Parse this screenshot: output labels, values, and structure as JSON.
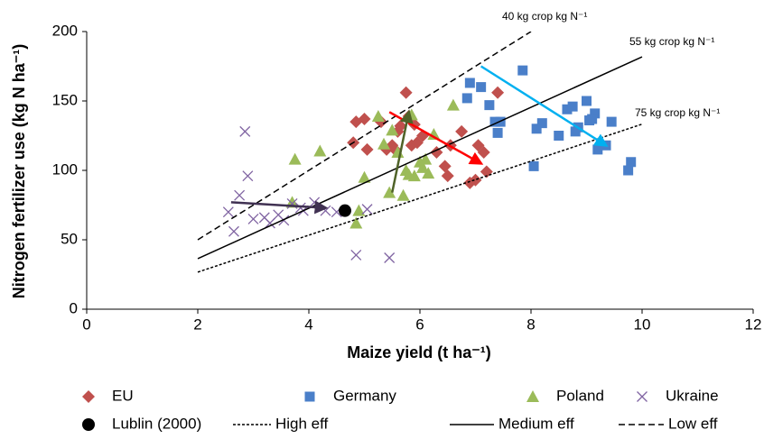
{
  "chart_data": {
    "type": "scatter",
    "x_label": "Maize yield (t ha⁻¹)",
    "y_label": "Nitrogen fertilizer use (kg N ha⁻¹)",
    "xlim": [
      0,
      12
    ],
    "xticks": [
      0,
      2,
      4,
      6,
      8,
      10,
      12
    ],
    "ylim": [
      0,
      200
    ],
    "yticks": [
      0,
      50,
      100,
      150,
      200
    ],
    "grid": false,
    "legend": "bottom",
    "series": [
      {
        "name": "EU",
        "color": "#c0504d",
        "marker": "diamond",
        "x": [
          4.8,
          4.85,
          5.0,
          5.05,
          5.3,
          5.4,
          5.5,
          5.55,
          5.6,
          5.75,
          5.85,
          5.9,
          5.95,
          6.05,
          6.3,
          6.45,
          6.5,
          6.55,
          6.75,
          6.9,
          7.0,
          7.05,
          7.15,
          7.2,
          7.4,
          5.8,
          5.65
        ],
        "values": [
          120,
          135,
          137,
          115,
          135,
          115,
          118,
          115,
          128,
          156,
          118,
          133,
          120,
          125,
          113,
          103,
          96,
          118,
          128,
          91,
          93,
          118,
          113,
          99,
          156,
          139,
          132
        ]
      },
      {
        "name": "Germany",
        "color": "#4a7fc9",
        "marker": "square",
        "x": [
          6.85,
          6.9,
          7.1,
          7.25,
          7.35,
          7.4,
          7.85,
          8.05,
          8.1,
          8.2,
          8.5,
          8.65,
          8.75,
          8.8,
          8.85,
          9.0,
          9.05,
          9.15,
          9.2,
          9.35,
          9.45,
          9.75,
          9.8,
          7.45,
          9.1
        ],
        "values": [
          152,
          163,
          160,
          147,
          135,
          127,
          172,
          103,
          130,
          134,
          125,
          144,
          146,
          128,
          131,
          150,
          136,
          141,
          115,
          118,
          135,
          100,
          106,
          135,
          137
        ]
      },
      {
        "name": "Poland",
        "color": "#9bbb59",
        "marker": "triangle",
        "x": [
          3.75,
          4.2,
          3.7,
          4.85,
          4.9,
          5.0,
          5.25,
          5.35,
          5.45,
          5.5,
          5.6,
          5.7,
          5.75,
          5.8,
          5.85,
          6.0,
          6.05,
          6.1,
          6.15,
          6.25,
          6.6,
          5.9
        ],
        "values": [
          108,
          114,
          77,
          62,
          71,
          95,
          139,
          119,
          84,
          129,
          113,
          82,
          100,
          97,
          140,
          106,
          102,
          108,
          98,
          126,
          147,
          96
        ]
      },
      {
        "name": "Ukraine",
        "color": "#8064a2",
        "marker": "x",
        "x": [
          2.55,
          2.65,
          2.75,
          2.85,
          2.9,
          3.0,
          3.2,
          3.3,
          3.45,
          3.55,
          3.85,
          3.9,
          4.1,
          4.3,
          4.5,
          4.85,
          5.05,
          5.45,
          3.7
        ],
        "values": [
          70,
          56,
          82,
          128,
          96,
          65,
          66,
          62,
          68,
          64,
          73,
          71,
          77,
          71,
          70,
          39,
          72,
          37,
          76
        ]
      },
      {
        "name": "Lublin (2000)",
        "color": "#000000",
        "marker": "circle",
        "x": [
          4.65
        ],
        "values": [
          71
        ]
      },
      {
        "name": "High eff",
        "color": "#000000",
        "style": "dotted",
        "x": [
          2,
          10
        ],
        "values": [
          26.7,
          133.3
        ]
      },
      {
        "name": "Medium eff",
        "color": "#000000",
        "style": "solid",
        "x": [
          2,
          10
        ],
        "values": [
          36.4,
          181.8
        ]
      },
      {
        "name": "Low eff",
        "color": "#000000",
        "style": "dashed",
        "x": [
          2,
          8
        ],
        "values": [
          50,
          200
        ]
      }
    ],
    "arrows": [
      {
        "color": "#ff0000",
        "x": [
          5.45,
          7.1
        ],
        "values": [
          142,
          105
        ]
      },
      {
        "color": "#00b0f0",
        "x": [
          7.1,
          9.35
        ],
        "values": [
          175,
          118
        ]
      },
      {
        "color": "#4f6228",
        "x": [
          5.5,
          5.8
        ],
        "values": [
          84,
          142
        ]
      },
      {
        "color": "#403152",
        "x": [
          2.6,
          4.3
        ],
        "values": [
          77,
          73
        ]
      }
    ],
    "annotations": [
      "40 kg crop kg N⁻¹",
      "55 kg crop kg N⁻¹",
      "75 kg crop kg N⁻¹"
    ]
  }
}
